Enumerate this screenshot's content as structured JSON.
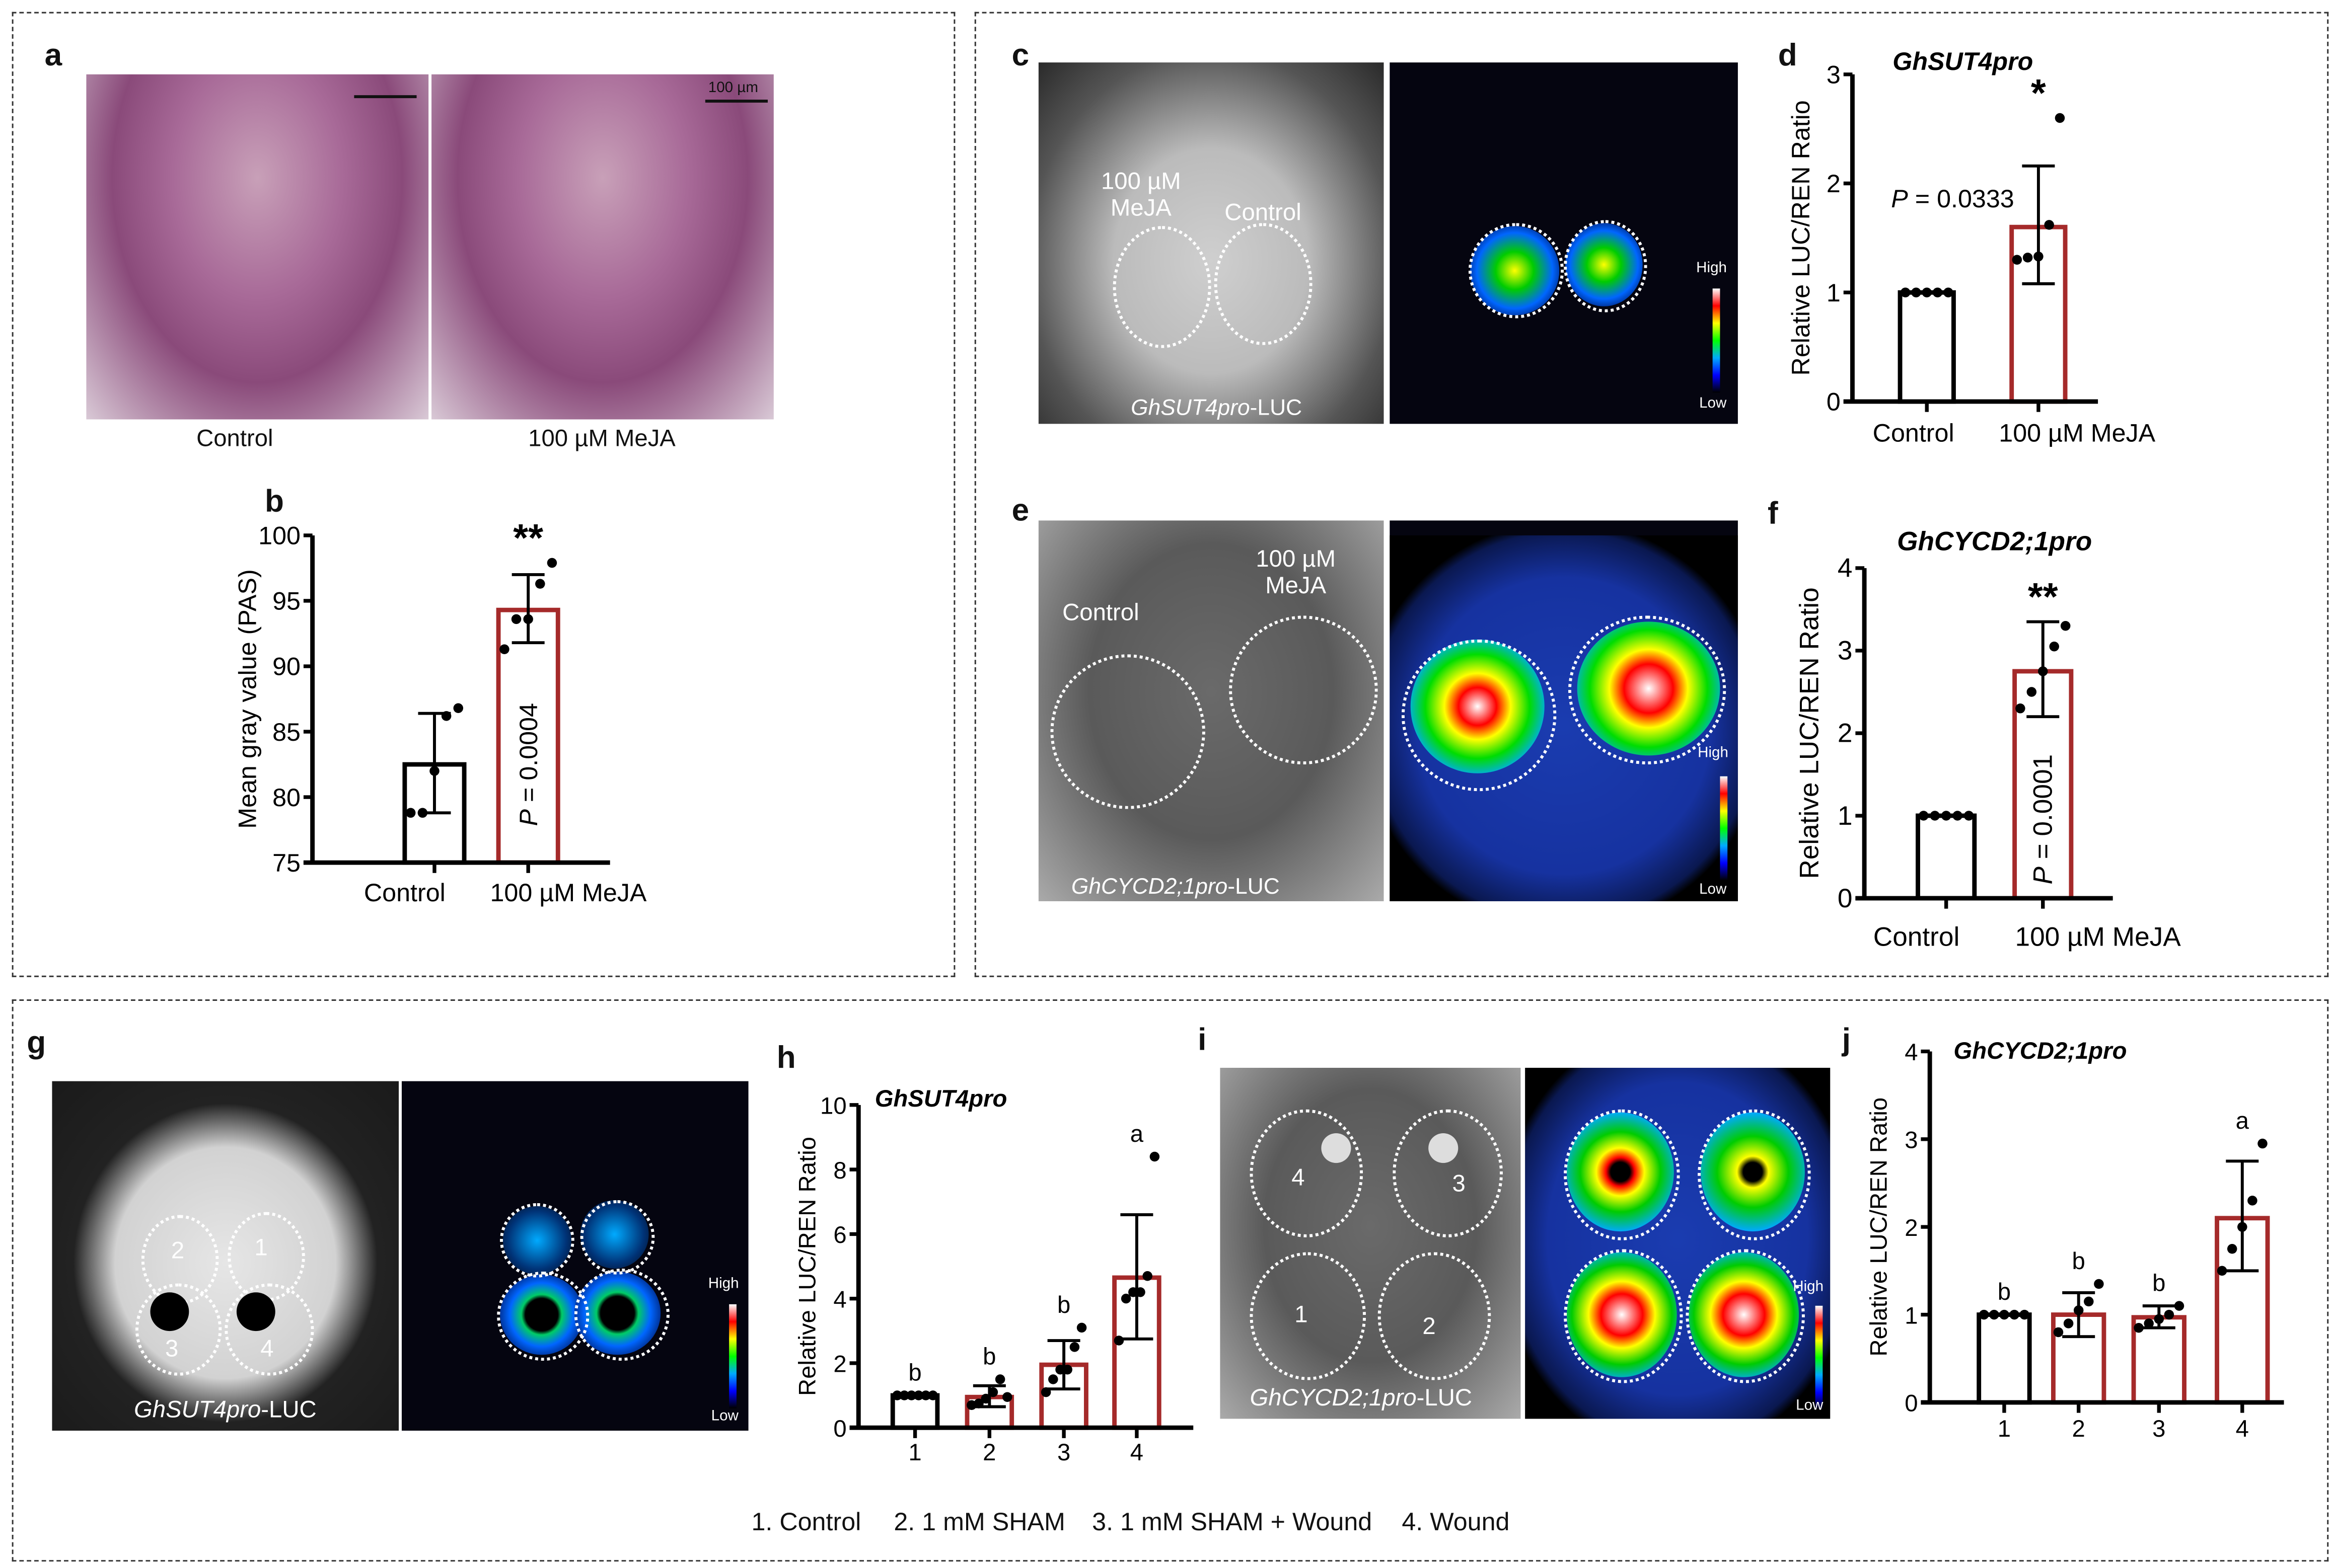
{
  "panels": {
    "a": {
      "label": "a",
      "left_caption": "Control",
      "right_caption": "100 µM MeJA",
      "scale_bar": "100 µm"
    },
    "b": {
      "label": "b"
    },
    "c": {
      "label": "c",
      "roi_treatment": "100 µM\nMeJA",
      "roi_control": "Control",
      "construct_italic": "GhSUT4pro",
      "construct_suffix": "-LUC",
      "scale_high": "High",
      "scale_low": "Low"
    },
    "d": {
      "label": "d"
    },
    "e": {
      "label": "e",
      "roi_treatment": "100 µM\nMeJA",
      "roi_control": "Control",
      "construct_italic": "GhCYCD2;1pro",
      "construct_suffix": "-LUC",
      "scale_high": "High",
      "scale_low": "Low"
    },
    "f": {
      "label": "f"
    },
    "g": {
      "label": "g",
      "rois": [
        "2",
        "1",
        "3",
        "4"
      ],
      "construct_italic": "GhSUT4pro",
      "construct_suffix": "-LUC",
      "scale_high": "High",
      "scale_low": "Low"
    },
    "h": {
      "label": "h"
    },
    "i": {
      "label": "i",
      "rois": [
        "4",
        "3",
        "1",
        "2"
      ],
      "construct_italic": "GhCYCD2;1pro",
      "construct_suffix": "-LUC",
      "scale_high": "High",
      "scale_low": "Low"
    },
    "j": {
      "label": "j"
    }
  },
  "legend": [
    "1. Control",
    "2. 1 mM SHAM",
    "3. 1 mM SHAM + Wound",
    "4. Wound"
  ],
  "colors": {
    "control_bar": "#000000",
    "treatment_bar": "#a52a2a",
    "points": "#000000"
  },
  "chart_data": [
    {
      "panel": "b",
      "type": "bar",
      "title": "",
      "ylabel": "Mean gray value (PAS)",
      "ylim": [
        75,
        100
      ],
      "yticks": [
        75,
        80,
        85,
        90,
        95,
        100
      ],
      "categories": [
        "Control",
        "100 µM MeJA"
      ],
      "values": [
        82.5,
        94.3
      ],
      "error": [
        [
          78.8,
          86.4
        ],
        [
          91.8,
          97.0
        ]
      ],
      "points": [
        [
          78.8,
          78.8,
          82.0,
          86.2,
          86.8
        ],
        [
          91.3,
          93.6,
          93.6,
          96.3,
          97.9
        ]
      ],
      "significance": [
        "",
        "**"
      ],
      "p_value": "P = 0.0004",
      "p_orientation": "vertical"
    },
    {
      "panel": "d",
      "type": "bar",
      "title": "GhSUT4pro",
      "ylabel": "Relative LUC/REN Ratio",
      "ylim": [
        0,
        3
      ],
      "yticks": [
        0,
        1,
        2,
        3
      ],
      "categories": [
        "Control",
        "100 µM MeJA"
      ],
      "values": [
        1.0,
        1.6
      ],
      "error": [
        [
          1.0,
          1.0
        ],
        [
          1.08,
          2.16
        ]
      ],
      "points": [
        [
          1,
          1,
          1,
          1,
          1
        ],
        [
          1.3,
          1.32,
          1.33,
          1.62,
          2.6
        ]
      ],
      "significance": [
        "",
        "*"
      ],
      "p_value": "P = 0.0333",
      "p_orientation": "horizontal"
    },
    {
      "panel": "f",
      "type": "bar",
      "title": "GhCYCD2;1pro",
      "ylabel": "Relative LUC/REN Ratio",
      "ylim": [
        0,
        4
      ],
      "yticks": [
        0,
        1,
        2,
        3,
        4
      ],
      "categories": [
        "Control",
        "100 µM MeJA"
      ],
      "values": [
        1.0,
        2.75
      ],
      "error": [
        [
          1.0,
          1.0
        ],
        [
          2.2,
          3.35
        ]
      ],
      "points": [
        [
          1,
          1,
          1,
          1,
          1
        ],
        [
          2.3,
          2.5,
          2.75,
          3.05,
          3.3
        ]
      ],
      "significance": [
        "",
        "**"
      ],
      "p_value": "P = 0.0001",
      "p_orientation": "vertical"
    },
    {
      "panel": "h",
      "type": "bar",
      "title": "GhSUT4pro",
      "ylabel": "Relative LUC/REN Ratio",
      "ylim": [
        0,
        10
      ],
      "yticks": [
        0,
        2,
        4,
        6,
        8,
        10
      ],
      "categories": [
        "1",
        "2",
        "3",
        "4"
      ],
      "values": [
        1.0,
        0.95,
        1.95,
        4.65
      ],
      "error": [
        [
          1.0,
          1.0
        ],
        [
          0.65,
          1.3
        ],
        [
          1.2,
          2.7
        ],
        [
          2.75,
          6.6
        ]
      ],
      "points": [
        [
          1,
          1,
          1,
          1,
          1,
          1
        ],
        [
          0.7,
          0.75,
          0.9,
          1.1,
          1.5,
          0.95
        ],
        [
          1.1,
          1.5,
          1.8,
          1.8,
          2.5,
          3.1
        ],
        [
          2.7,
          4.0,
          4.2,
          4.2,
          4.7,
          8.4
        ]
      ],
      "letters": [
        "b",
        "b",
        "b",
        "a"
      ]
    },
    {
      "panel": "j",
      "type": "bar",
      "title": "GhCYCD2;1pro",
      "ylabel": "Relative LUC/REN Ratio",
      "ylim": [
        0,
        4
      ],
      "yticks": [
        0,
        1,
        2,
        3,
        4
      ],
      "categories": [
        "1",
        "2",
        "3",
        "4"
      ],
      "values": [
        1.0,
        1.0,
        0.97,
        2.1
      ],
      "error": [
        [
          1.0,
          1.0
        ],
        [
          0.75,
          1.25
        ],
        [
          0.85,
          1.1
        ],
        [
          1.5,
          2.75
        ]
      ],
      "points": [
        [
          1,
          1,
          1,
          1,
          1
        ],
        [
          0.8,
          0.9,
          1.05,
          1.15,
          1.35
        ],
        [
          0.85,
          0.9,
          0.95,
          1.0,
          1.1
        ],
        [
          1.5,
          1.75,
          2.0,
          2.3,
          2.95
        ]
      ],
      "letters": [
        "b",
        "b",
        "b",
        "a"
      ]
    }
  ]
}
